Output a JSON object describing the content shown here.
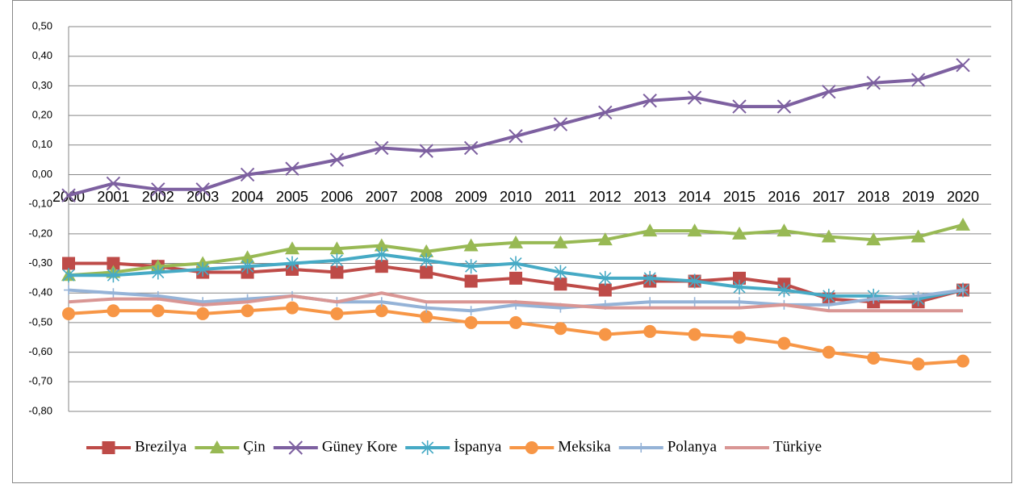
{
  "chart_data": {
    "type": "line",
    "categories": [
      "2000",
      "2001",
      "2002",
      "2003",
      "2004",
      "2005",
      "2006",
      "2007",
      "2008",
      "2009",
      "2010",
      "2011",
      "2012",
      "2013",
      "2014",
      "2015",
      "2016",
      "2017",
      "2018",
      "2019",
      "2020"
    ],
    "ylim": [
      -0.8,
      0.5
    ],
    "yticks": [
      {
        "value": 0.5,
        "label": "0,50"
      },
      {
        "value": 0.4,
        "label": "0,40"
      },
      {
        "value": 0.3,
        "label": "0,30"
      },
      {
        "value": 0.2,
        "label": "0,20"
      },
      {
        "value": 0.1,
        "label": "0,10"
      },
      {
        "value": 0,
        "label": "0,00"
      },
      {
        "value": -0.1,
        "label": "-0,10"
      },
      {
        "value": -0.2,
        "label": "-0,20"
      },
      {
        "value": -0.3,
        "label": "-0,30"
      },
      {
        "value": -0.4,
        "label": "-0,40"
      },
      {
        "value": -0.5,
        "label": "-0,50"
      },
      {
        "value": -0.6,
        "label": "-0,60"
      },
      {
        "value": -0.7,
        "label": "-0,70"
      },
      {
        "value": -0.8,
        "label": "-0,80"
      }
    ],
    "grid": true,
    "legend": "bottom",
    "series": [
      {
        "name": "Brezilya",
        "color": "#be4b48",
        "marker": "square",
        "values": [
          -0.3,
          -0.3,
          -0.31,
          -0.33,
          -0.33,
          -0.32,
          -0.33,
          -0.31,
          -0.33,
          -0.36,
          -0.35,
          -0.37,
          -0.39,
          -0.36,
          -0.36,
          -0.35,
          -0.37,
          -0.42,
          -0.43,
          -0.43,
          -0.39
        ]
      },
      {
        "name": "Çin",
        "color": "#98b954",
        "marker": "triangle",
        "values": [
          -0.34,
          -0.33,
          -0.31,
          -0.3,
          -0.28,
          -0.25,
          -0.25,
          -0.24,
          -0.26,
          -0.24,
          -0.23,
          -0.23,
          -0.22,
          -0.19,
          -0.19,
          -0.2,
          -0.19,
          -0.21,
          -0.22,
          -0.21,
          -0.17
        ]
      },
      {
        "name": "Güney Kore",
        "color": "#7d60a0",
        "marker": "x",
        "values": [
          -0.07,
          -0.03,
          -0.05,
          -0.05,
          0.0,
          0.02,
          0.05,
          0.09,
          0.08,
          0.09,
          0.13,
          0.17,
          0.21,
          0.25,
          0.26,
          0.23,
          0.23,
          0.28,
          0.31,
          0.32,
          0.37
        ]
      },
      {
        "name": "İspanya",
        "color": "#46aac5",
        "marker": "asterisk",
        "values": [
          -0.34,
          -0.34,
          -0.33,
          -0.32,
          -0.31,
          -0.3,
          -0.29,
          -0.27,
          -0.29,
          -0.31,
          -0.3,
          -0.33,
          -0.35,
          -0.35,
          -0.36,
          -0.38,
          -0.39,
          -0.41,
          -0.41,
          -0.42,
          -0.39
        ]
      },
      {
        "name": "Meksika",
        "color": "#f79646",
        "marker": "circle",
        "values": [
          -0.47,
          -0.46,
          -0.46,
          -0.47,
          -0.46,
          -0.45,
          -0.47,
          -0.46,
          -0.48,
          -0.5,
          -0.5,
          -0.52,
          -0.54,
          -0.53,
          -0.54,
          -0.55,
          -0.57,
          -0.6,
          -0.62,
          -0.64,
          -0.63
        ]
      },
      {
        "name": "Polanya",
        "color": "#95b3d7",
        "marker": "plus",
        "values": [
          -0.39,
          -0.4,
          -0.41,
          -0.43,
          -0.42,
          -0.41,
          -0.43,
          -0.43,
          -0.45,
          -0.46,
          -0.44,
          -0.45,
          -0.44,
          -0.43,
          -0.43,
          -0.43,
          -0.44,
          -0.44,
          -0.42,
          -0.41,
          -0.39
        ]
      },
      {
        "name": "Türkiye",
        "color": "#d99694",
        "marker": "none",
        "values": [
          -0.43,
          -0.42,
          -0.42,
          -0.44,
          -0.43,
          -0.41,
          -0.43,
          -0.4,
          -0.43,
          -0.43,
          -0.43,
          -0.44,
          -0.45,
          -0.45,
          -0.45,
          -0.45,
          -0.44,
          -0.46,
          -0.46,
          -0.46,
          -0.46
        ]
      }
    ]
  }
}
